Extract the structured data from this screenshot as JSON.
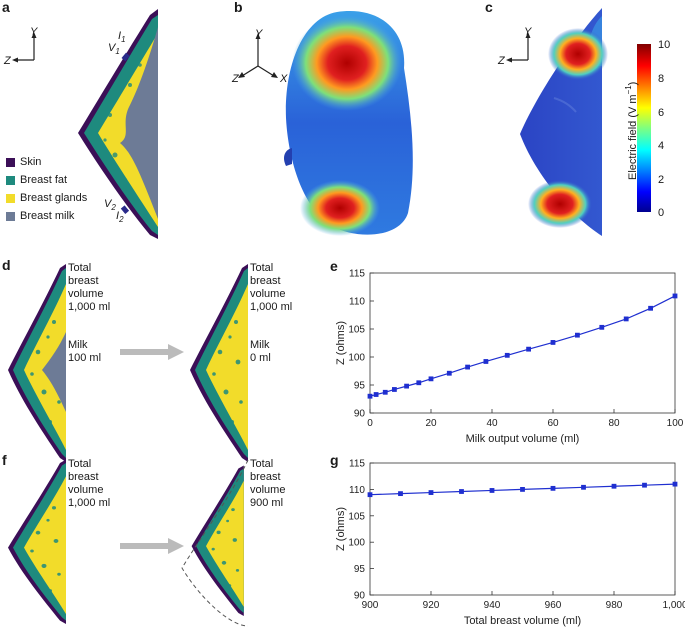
{
  "panels": {
    "a": "a",
    "b": "b",
    "c": "c",
    "d": "d",
    "e": "e",
    "f": "f",
    "g": "g"
  },
  "axes": {
    "y": "Y",
    "z": "Z",
    "x": "X"
  },
  "electrodes": {
    "i1": "I",
    "i1_sub": "1",
    "v1": "V",
    "v1_sub": "1",
    "v2": "V",
    "v2_sub": "2",
    "i2": "I",
    "i2_sub": "2"
  },
  "legend": [
    {
      "label": "Skin",
      "color": "#3b0f57"
    },
    {
      "label": "Breast fat",
      "color": "#1e8a7e"
    },
    {
      "label": "Breast glands",
      "color": "#f2dc2a"
    },
    {
      "label": "Breast milk",
      "color": "#6d7b96"
    }
  ],
  "colorbar": {
    "title": "Electric field (V m",
    "title_sup": "−1",
    "title_end": ")",
    "ticks": [
      "10",
      "8",
      "6",
      "4",
      "2",
      "0"
    ]
  },
  "panel_d": {
    "left_text": [
      "Total",
      "breast",
      "volume",
      "1,000 ml"
    ],
    "left_milk": [
      "Milk",
      "100 ml"
    ],
    "right_text": [
      "Total",
      "breast",
      "volume",
      "1,000 ml"
    ],
    "right_milk": [
      "Milk",
      "0 ml"
    ]
  },
  "panel_f": {
    "left_text": [
      "Total",
      "breast",
      "volume",
      "1,000 ml"
    ],
    "right_text": [
      "Total",
      "breast",
      "volume",
      "900 ml"
    ]
  },
  "colors": {
    "series": "#1f2fd0",
    "skin": "#3b0f57",
    "fat": "#1e8a7e",
    "gland": "#f2dc2a",
    "milk": "#6d7b96",
    "arrow": "#bbbbbb"
  },
  "chart_data": [
    {
      "type": "line",
      "panel": "e",
      "xlabel": "Milk output volume (ml)",
      "ylabel": "Z (ohms)",
      "xlim": [
        0,
        100
      ],
      "ylim": [
        90,
        115
      ],
      "xticks": [
        "0",
        "20",
        "40",
        "60",
        "80",
        "100"
      ],
      "yticks": [
        "90",
        "95",
        "100",
        "105",
        "110",
        "115"
      ],
      "x": [
        0,
        2,
        5,
        8,
        12,
        16,
        20,
        26,
        32,
        38,
        45,
        52,
        60,
        68,
        76,
        84,
        92,
        100
      ],
      "y": [
        93.0,
        93.3,
        93.7,
        94.2,
        94.8,
        95.4,
        96.1,
        97.1,
        98.2,
        99.2,
        100.3,
        101.4,
        102.6,
        103.9,
        105.3,
        106.8,
        108.7,
        110.9
      ]
    },
    {
      "type": "line",
      "panel": "g",
      "xlabel": "Total breast volume (ml)",
      "ylabel": "Z (ohms)",
      "xlim": [
        900,
        1000
      ],
      "ylim": [
        90,
        115
      ],
      "xticks": [
        "900",
        "920",
        "940",
        "960",
        "980",
        "1,000"
      ],
      "yticks": [
        "90",
        "95",
        "100",
        "105",
        "110",
        "115"
      ],
      "x": [
        900,
        910,
        920,
        930,
        940,
        950,
        960,
        970,
        980,
        990,
        1000
      ],
      "y": [
        109.0,
        109.2,
        109.4,
        109.6,
        109.8,
        110.0,
        110.2,
        110.4,
        110.6,
        110.8,
        111.0
      ]
    }
  ]
}
